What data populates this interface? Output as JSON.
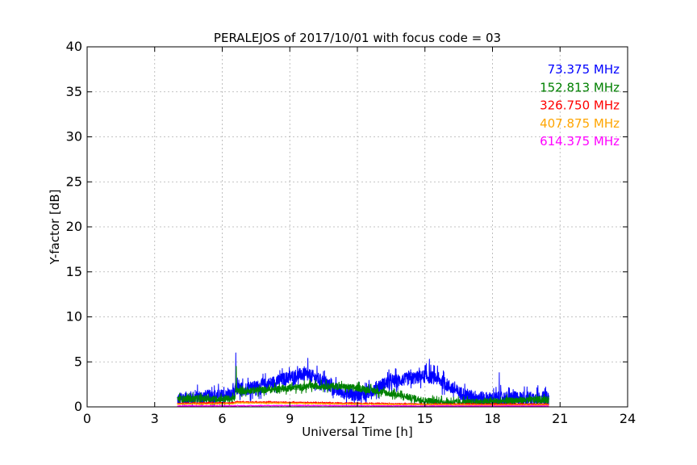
{
  "chart_data": {
    "type": "line",
    "title": "PERALEJOS of 2017/10/01 with focus code = 03",
    "xlabel": "Universal Time [h]",
    "ylabel": "Y-factor [dB]",
    "xlim": [
      0,
      24
    ],
    "ylim": [
      0,
      40
    ],
    "xticks": [
      0,
      3,
      6,
      9,
      12,
      15,
      18,
      21,
      24
    ],
    "yticks": [
      0,
      5,
      10,
      15,
      20,
      25,
      30,
      35,
      40
    ],
    "grid": true,
    "legend_position": "top-right",
    "series": [
      {
        "name": "73.375 MHz",
        "color": "#0000ff",
        "x": [
          4.0,
          4.5,
          5.0,
          5.5,
          6.0,
          6.5,
          6.6,
          7.0,
          7.5,
          8.0,
          8.5,
          9.0,
          9.5,
          10.0,
          10.5,
          11.0,
          11.5,
          12.0,
          12.5,
          13.0,
          13.5,
          14.0,
          14.5,
          15.0,
          15.5,
          16.0,
          16.5,
          17.0,
          17.5,
          18.0,
          18.5,
          19.0,
          19.5,
          20.0,
          20.5
        ],
        "y": [
          0.8,
          1.0,
          1.1,
          1.2,
          1.2,
          1.3,
          2.0,
          2.0,
          2.2,
          2.5,
          2.9,
          3.3,
          3.6,
          3.4,
          2.8,
          2.0,
          1.5,
          1.3,
          1.6,
          2.4,
          2.8,
          3.0,
          3.2,
          3.4,
          3.2,
          2.4,
          1.6,
          1.2,
          1.0,
          0.9,
          1.0,
          1.0,
          1.0,
          1.0,
          1.0
        ],
        "noise": 0.9,
        "spikes": [
          {
            "x": 6.6,
            "y": 6.0
          },
          {
            "x": 9.8,
            "y": 5.4
          },
          {
            "x": 15.2,
            "y": 5.3
          },
          {
            "x": 18.3,
            "y": 3.8
          }
        ]
      },
      {
        "name": "152.813 MHz",
        "color": "#008000",
        "x": [
          4.0,
          5.0,
          6.0,
          6.55,
          6.6,
          7.0,
          8.0,
          9.0,
          10.0,
          11.0,
          12.0,
          13.0,
          14.0,
          15.0,
          16.0,
          17.0,
          18.0,
          19.0,
          20.0,
          20.5
        ],
        "y": [
          0.9,
          0.9,
          0.9,
          0.9,
          1.8,
          1.8,
          1.9,
          2.1,
          2.3,
          2.3,
          2.1,
          1.7,
          1.2,
          0.7,
          0.5,
          0.5,
          0.6,
          0.7,
          0.8,
          0.8
        ],
        "noise": 0.45,
        "spikes": [
          {
            "x": 6.62,
            "y": 4.5
          }
        ]
      },
      {
        "name": "326.750 MHz",
        "color": "#ff0000",
        "x": [
          4.0,
          6.5,
          6.6,
          9.0,
          12.0,
          15.0,
          18.0,
          20.5
        ],
        "y": [
          0.4,
          0.45,
          0.55,
          0.5,
          0.4,
          0.3,
          0.3,
          0.3
        ],
        "noise": 0.08,
        "spikes": []
      },
      {
        "name": "407.875 MHz",
        "color": "#ffa500",
        "x": [
          4.0,
          6.5,
          6.6,
          9.0,
          12.0,
          15.0,
          18.0,
          20.5
        ],
        "y": [
          0.3,
          0.35,
          0.45,
          0.4,
          0.3,
          0.25,
          0.2,
          0.2
        ],
        "noise": 0.06,
        "spikes": []
      },
      {
        "name": "614.375 MHz",
        "color": "#ff00ff",
        "x": [
          4.0,
          6.5,
          9.0,
          12.0,
          15.0,
          18.0,
          20.5
        ],
        "y": [
          0.1,
          0.12,
          0.15,
          0.12,
          0.1,
          0.1,
          0.1
        ],
        "noise": 0.05,
        "spikes": []
      }
    ]
  }
}
